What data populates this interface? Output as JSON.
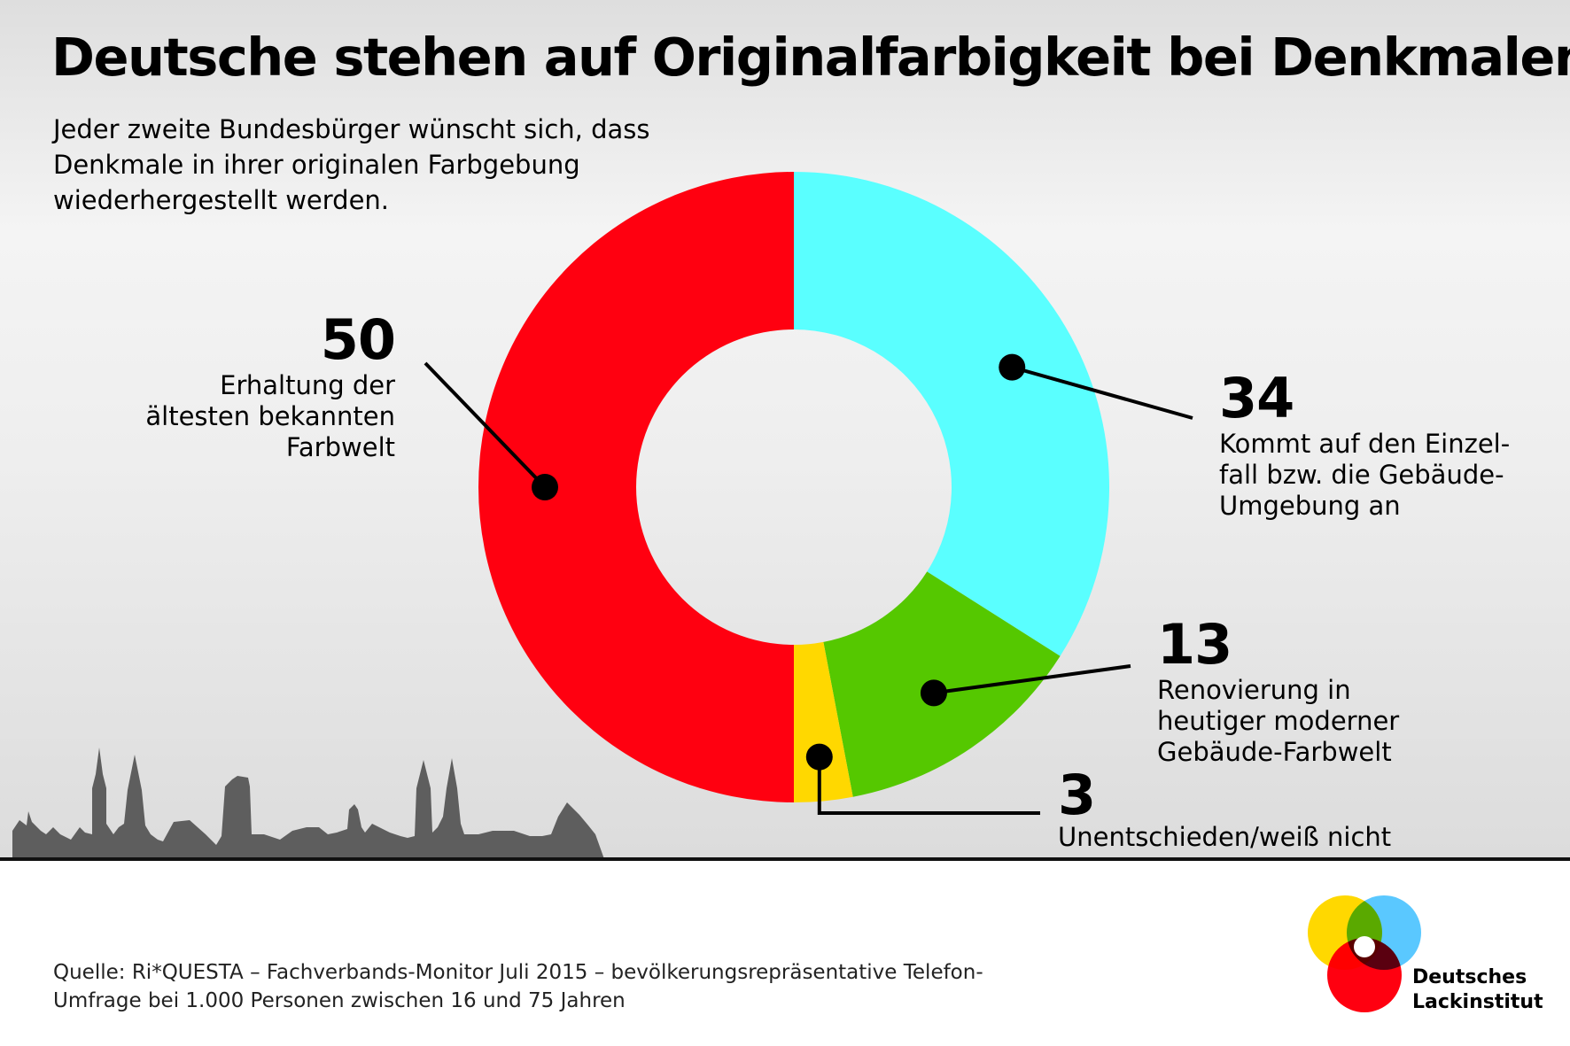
{
  "title": "Deutsche stehen auf Originalfarbigkeit bei Denkmalen",
  "subtitle": "Jeder zweite Bundesbürger wünscht sich, dass Denkmale in ihrer originalen Farbgebung wiederhergestellt werden.",
  "chart_data": {
    "type": "pie",
    "variant": "donut",
    "categories": [
      "Kommt auf den Einzelfall bzw. die Gebäude-Umgebung an",
      "Renovierung in heutiger moderner Gebäude-Farbwelt",
      "Unentschieden/weiß nicht",
      "Erhaltung der ältesten bekannten Farbwelt"
    ],
    "values": [
      34,
      13,
      3,
      50
    ],
    "value_labels": [
      "34",
      "13",
      "3",
      "50"
    ],
    "category_labels": [
      "Kommt auf den Einzel-\nfall bzw. die Gebäude-\nUmgebung an",
      "Renovierung in\nheutiger moderner\nGebäude-Farbwelt",
      "Unentschieden/weiß nicht",
      "Erhaltung der\nältesten bekannten\nFarbwelt"
    ],
    "colors": [
      "#5affff",
      "#55c800",
      "#ffd800",
      "#ff0010"
    ],
    "start": "top",
    "direction": "clockwise"
  },
  "source": "Quelle: Ri*QUESTA – Fachverbands-Monitor Juli 2015 – bevölkerungsrepräsentative Telefon-Umfrage bei 1.000 Personen zwischen 16 und 75 Jahren",
  "logo": {
    "line1": "Deutsches",
    "line2": "Lackinstitut",
    "colors": [
      "#ffd800",
      "#5ac8ff",
      "#ff0010"
    ]
  }
}
